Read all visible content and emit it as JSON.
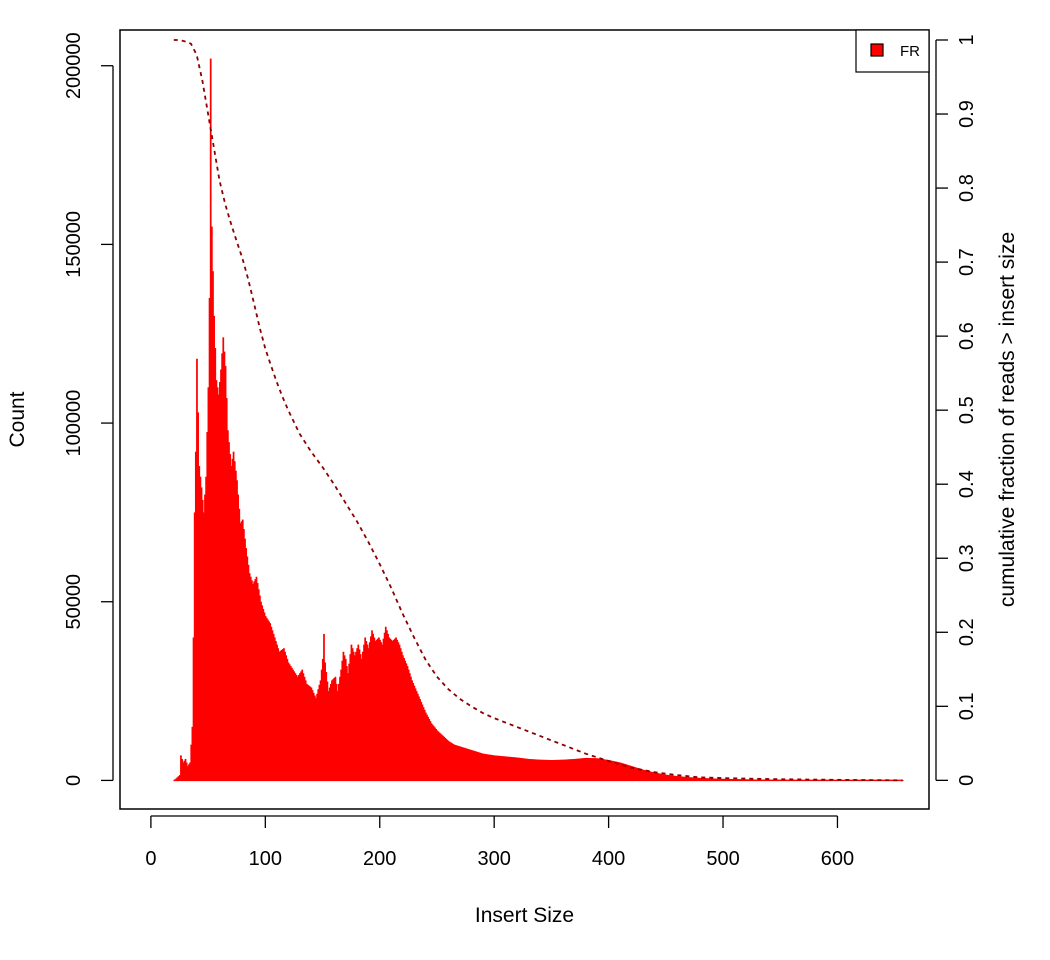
{
  "chart_data": {
    "type": "bar",
    "title": "",
    "xlabel": "Insert Size",
    "ylabel": "Count",
    "y2label": "cumulative fraction of reads > insert size",
    "xlim": [
      -27,
      680
    ],
    "ylim": [
      -8000,
      210000
    ],
    "y2lim": [
      -0.0387,
      1.0135
    ],
    "x_ticks": [
      0,
      100,
      200,
      300,
      400,
      500,
      600
    ],
    "y_ticks": [
      0,
      50000,
      100000,
      150000,
      200000
    ],
    "y2_ticks": [
      0,
      0.1,
      0.2,
      0.3,
      0.4,
      0.5,
      0.6,
      0.7,
      0.8,
      0.9,
      1
    ],
    "grid": false,
    "legend": {
      "position": "top-right",
      "entries": [
        {
          "label": "FR",
          "color": "#ff0000"
        }
      ]
    },
    "colors": {
      "bars": "#ff0000",
      "cumulative_line": "#8b0000"
    },
    "histogram": {
      "name": "FR",
      "points": [
        [
          20,
          0
        ],
        [
          25,
          1500
        ],
        [
          26,
          7000
        ],
        [
          28,
          5000
        ],
        [
          30,
          6000
        ],
        [
          32,
          4000
        ],
        [
          34,
          5000
        ],
        [
          36,
          15000
        ],
        [
          37,
          40000
        ],
        [
          38,
          75000
        ],
        [
          39,
          92000
        ],
        [
          40,
          118000
        ],
        [
          42,
          88000
        ],
        [
          44,
          82000
        ],
        [
          46,
          75000
        ],
        [
          48,
          85000
        ],
        [
          50,
          110000
        ],
        [
          51,
          135000
        ],
        [
          52,
          202000
        ],
        [
          53,
          155000
        ],
        [
          55,
          130000
        ],
        [
          57,
          112000
        ],
        [
          59,
          108000
        ],
        [
          61,
          115000
        ],
        [
          63,
          124000
        ],
        [
          65,
          116000
        ],
        [
          67,
          98000
        ],
        [
          70,
          88000
        ],
        [
          72,
          92000
        ],
        [
          75,
          84000
        ],
        [
          78,
          72000
        ],
        [
          80,
          73000
        ],
        [
          83,
          65000
        ],
        [
          86,
          58000
        ],
        [
          89,
          55000
        ],
        [
          92,
          57000
        ],
        [
          96,
          50000
        ],
        [
          100,
          46000
        ],
        [
          104,
          44000
        ],
        [
          108,
          40000
        ],
        [
          112,
          36000
        ],
        [
          116,
          37000
        ],
        [
          120,
          33000
        ],
        [
          124,
          31000
        ],
        [
          128,
          29000
        ],
        [
          132,
          31000
        ],
        [
          136,
          27000
        ],
        [
          140,
          26000
        ],
        [
          144,
          23000
        ],
        [
          148,
          28000
        ],
        [
          150,
          34000
        ],
        [
          151,
          41000
        ],
        [
          152,
          33000
        ],
        [
          155,
          25000
        ],
        [
          158,
          28000
        ],
        [
          161,
          29000
        ],
        [
          163,
          25000
        ],
        [
          166,
          31000
        ],
        [
          168,
          36000
        ],
        [
          170,
          34000
        ],
        [
          172,
          30000
        ],
        [
          175,
          38000
        ],
        [
          178,
          35000
        ],
        [
          181,
          38000
        ],
        [
          184,
          34000
        ],
        [
          187,
          40000
        ],
        [
          190,
          37000
        ],
        [
          193,
          42000
        ],
        [
          196,
          39000
        ],
        [
          199,
          40000
        ],
        [
          202,
          38000
        ],
        [
          205,
          43000
        ],
        [
          208,
          40000
        ],
        [
          211,
          39000
        ],
        [
          214,
          40000
        ],
        [
          217,
          38000
        ],
        [
          220,
          35000
        ],
        [
          224,
          32000
        ],
        [
          228,
          28000
        ],
        [
          232,
          25000
        ],
        [
          236,
          22000
        ],
        [
          240,
          19000
        ],
        [
          245,
          16000
        ],
        [
          250,
          14000
        ],
        [
          255,
          12500
        ],
        [
          260,
          11000
        ],
        [
          265,
          10000
        ],
        [
          270,
          9500
        ],
        [
          275,
          9000
        ],
        [
          280,
          8500
        ],
        [
          290,
          7500
        ],
        [
          300,
          7000
        ],
        [
          310,
          6700
        ],
        [
          320,
          6400
        ],
        [
          330,
          6000
        ],
        [
          340,
          5800
        ],
        [
          350,
          5700
        ],
        [
          360,
          5800
        ],
        [
          370,
          6000
        ],
        [
          380,
          6300
        ],
        [
          390,
          6200
        ],
        [
          400,
          5700
        ],
        [
          410,
          5000
        ],
        [
          420,
          4000
        ],
        [
          430,
          3000
        ],
        [
          440,
          2200
        ],
        [
          450,
          1600
        ],
        [
          460,
          1200
        ],
        [
          470,
          900
        ],
        [
          480,
          700
        ],
        [
          490,
          550
        ],
        [
          500,
          450
        ],
        [
          520,
          300
        ],
        [
          540,
          200
        ],
        [
          560,
          130
        ],
        [
          580,
          90
        ],
        [
          600,
          60
        ],
        [
          620,
          40
        ],
        [
          640,
          30
        ],
        [
          657,
          20
        ]
      ]
    },
    "cumulative": {
      "name": "cumulative fraction of reads > insert size",
      "points": [
        [
          20,
          1.0
        ],
        [
          25,
          1.0
        ],
        [
          30,
          0.998
        ],
        [
          35,
          0.995
        ],
        [
          40,
          0.98
        ],
        [
          45,
          0.945
        ],
        [
          50,
          0.9
        ],
        [
          55,
          0.855
        ],
        [
          60,
          0.81
        ],
        [
          65,
          0.778
        ],
        [
          70,
          0.752
        ],
        [
          75,
          0.728
        ],
        [
          80,
          0.705
        ],
        [
          85,
          0.677
        ],
        [
          90,
          0.645
        ],
        [
          95,
          0.612
        ],
        [
          100,
          0.583
        ],
        [
          105,
          0.56
        ],
        [
          110,
          0.538
        ],
        [
          115,
          0.518
        ],
        [
          120,
          0.5
        ],
        [
          130,
          0.468
        ],
        [
          140,
          0.444
        ],
        [
          150,
          0.423
        ],
        [
          160,
          0.4
        ],
        [
          170,
          0.375
        ],
        [
          180,
          0.35
        ],
        [
          190,
          0.322
        ],
        [
          200,
          0.292
        ],
        [
          210,
          0.26
        ],
        [
          220,
          0.225
        ],
        [
          230,
          0.193
        ],
        [
          240,
          0.163
        ],
        [
          250,
          0.14
        ],
        [
          260,
          0.123
        ],
        [
          270,
          0.11
        ],
        [
          280,
          0.1
        ],
        [
          290,
          0.091
        ],
        [
          300,
          0.084
        ],
        [
          320,
          0.072
        ],
        [
          340,
          0.06
        ],
        [
          360,
          0.048
        ],
        [
          380,
          0.036
        ],
        [
          400,
          0.026
        ],
        [
          420,
          0.017
        ],
        [
          440,
          0.011
        ],
        [
          460,
          0.007
        ],
        [
          480,
          0.004
        ],
        [
          500,
          0.003
        ],
        [
          550,
          0.0015
        ],
        [
          600,
          0.0007
        ],
        [
          657,
          0.0
        ]
      ]
    }
  }
}
